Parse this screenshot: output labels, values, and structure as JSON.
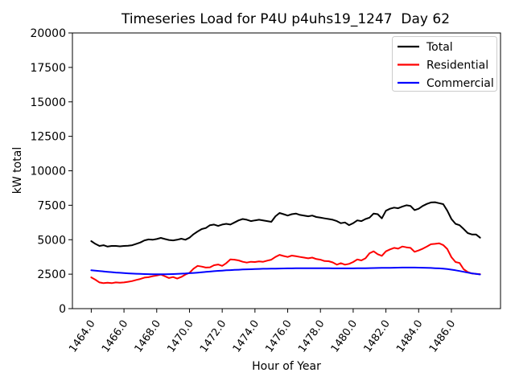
{
  "chart_data": {
    "type": "line",
    "title": "Timeseries Load for P4U p4uhs19_1247  Day 62",
    "xlabel": "Hour of Year",
    "ylabel": "kW total",
    "xlim": [
      1462.85,
      1489.0
    ],
    "ylim": [
      0,
      20000
    ],
    "grid": false,
    "legend_position": "upper right",
    "xtick_values": [
      1464,
      1466,
      1468,
      1470,
      1472,
      1474,
      1476,
      1478,
      1480,
      1482,
      1484,
      1486
    ],
    "xtick_labels": [
      "1464.0",
      "1466.0",
      "1468.0",
      "1470.0",
      "1472.0",
      "1474.0",
      "1476.0",
      "1478.0",
      "1480.0",
      "1482.0",
      "1484.0",
      "1486.0"
    ],
    "ytick_values": [
      0,
      2500,
      5000,
      7500,
      10000,
      12500,
      15000,
      17500,
      20000
    ],
    "ytick_labels": [
      "0",
      "2500",
      "5000",
      "7500",
      "10000",
      "12500",
      "15000",
      "17500",
      "20000"
    ],
    "x": [
      1464.0,
      1464.25,
      1464.5,
      1464.75,
      1465.0,
      1465.25,
      1465.5,
      1465.75,
      1466.0,
      1466.25,
      1466.5,
      1466.75,
      1467.0,
      1467.25,
      1467.5,
      1467.75,
      1468.0,
      1468.25,
      1468.5,
      1468.75,
      1469.0,
      1469.25,
      1469.5,
      1469.75,
      1470.0,
      1470.25,
      1470.5,
      1470.75,
      1471.0,
      1471.25,
      1471.5,
      1471.75,
      1472.0,
      1472.25,
      1472.5,
      1472.75,
      1473.0,
      1473.25,
      1473.5,
      1473.75,
      1474.0,
      1474.25,
      1474.5,
      1474.75,
      1475.0,
      1475.25,
      1475.5,
      1475.75,
      1476.0,
      1476.25,
      1476.5,
      1476.75,
      1477.0,
      1477.25,
      1477.5,
      1477.75,
      1478.0,
      1478.25,
      1478.5,
      1478.75,
      1479.0,
      1479.25,
      1479.5,
      1479.75,
      1480.0,
      1480.25,
      1480.5,
      1480.75,
      1481.0,
      1481.25,
      1481.5,
      1481.75,
      1482.0,
      1482.25,
      1482.5,
      1482.75,
      1483.0,
      1483.25,
      1483.5,
      1483.75,
      1484.0,
      1484.25,
      1484.5,
      1484.75,
      1485.0,
      1485.25,
      1485.5,
      1485.75,
      1486.0,
      1486.25,
      1486.5,
      1486.75,
      1487.0,
      1487.25,
      1487.5,
      1487.75
    ],
    "series": [
      {
        "name": "Total",
        "color": "#000000",
        "values": [
          4900,
          4700,
          4550,
          4600,
          4500,
          4550,
          4550,
          4520,
          4550,
          4560,
          4600,
          4700,
          4800,
          4950,
          5020,
          5000,
          5050,
          5130,
          5050,
          4980,
          4950,
          5000,
          5070,
          5000,
          5150,
          5400,
          5600,
          5770,
          5850,
          6050,
          6100,
          6000,
          6100,
          6150,
          6100,
          6250,
          6400,
          6500,
          6450,
          6350,
          6400,
          6450,
          6400,
          6350,
          6300,
          6700,
          6940,
          6850,
          6750,
          6850,
          6900,
          6800,
          6750,
          6700,
          6750,
          6650,
          6600,
          6550,
          6500,
          6450,
          6350,
          6200,
          6250,
          6060,
          6200,
          6400,
          6350,
          6500,
          6600,
          6900,
          6850,
          6550,
          7100,
          7250,
          7330,
          7280,
          7400,
          7500,
          7450,
          7150,
          7250,
          7450,
          7600,
          7700,
          7720,
          7650,
          7580,
          7100,
          6500,
          6150,
          6050,
          5780,
          5480,
          5380,
          5380,
          5150
        ]
      },
      {
        "name": "Residential",
        "color": "#ff0000",
        "values": [
          2270,
          2100,
          1900,
          1850,
          1880,
          1850,
          1900,
          1880,
          1900,
          1950,
          2000,
          2080,
          2150,
          2250,
          2280,
          2350,
          2400,
          2470,
          2350,
          2220,
          2290,
          2180,
          2300,
          2470,
          2600,
          2900,
          3100,
          3050,
          2980,
          3000,
          3150,
          3200,
          3100,
          3300,
          3570,
          3550,
          3500,
          3400,
          3340,
          3400,
          3380,
          3420,
          3400,
          3480,
          3550,
          3750,
          3900,
          3820,
          3750,
          3850,
          3800,
          3750,
          3700,
          3650,
          3700,
          3600,
          3550,
          3450,
          3440,
          3350,
          3190,
          3300,
          3190,
          3250,
          3380,
          3570,
          3500,
          3650,
          4020,
          4160,
          3950,
          3830,
          4160,
          4300,
          4410,
          4350,
          4510,
          4450,
          4410,
          4120,
          4220,
          4350,
          4510,
          4670,
          4700,
          4740,
          4610,
          4320,
          3730,
          3380,
          3310,
          2860,
          2660,
          2550,
          2520,
          2500
        ]
      },
      {
        "name": "Commercial",
        "color": "#0000ff",
        "values": [
          2780,
          2760,
          2730,
          2700,
          2670,
          2650,
          2620,
          2600,
          2580,
          2560,
          2545,
          2530,
          2520,
          2510,
          2500,
          2495,
          2490,
          2490,
          2495,
          2500,
          2510,
          2520,
          2535,
          2550,
          2570,
          2590,
          2615,
          2640,
          2665,
          2690,
          2715,
          2740,
          2760,
          2780,
          2795,
          2810,
          2825,
          2840,
          2850,
          2860,
          2870,
          2880,
          2890,
          2895,
          2900,
          2905,
          2910,
          2915,
          2920,
          2922,
          2925,
          2927,
          2928,
          2930,
          2930,
          2930,
          2930,
          2928,
          2926,
          2924,
          2922,
          2920,
          2920,
          2920,
          2922,
          2925,
          2930,
          2935,
          2940,
          2945,
          2950,
          2955,
          2960,
          2965,
          2970,
          2975,
          2980,
          2980,
          2980,
          2978,
          2975,
          2970,
          2960,
          2950,
          2935,
          2920,
          2900,
          2870,
          2830,
          2780,
          2730,
          2670,
          2610,
          2560,
          2520,
          2480
        ]
      }
    ]
  }
}
